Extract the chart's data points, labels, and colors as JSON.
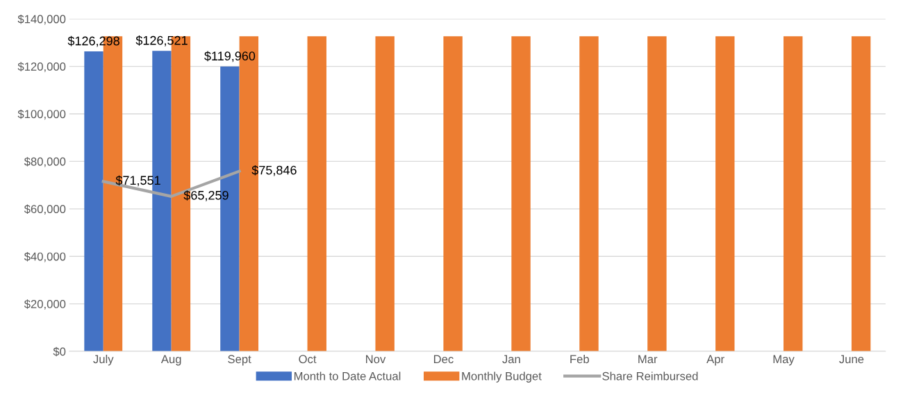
{
  "chart_data": {
    "type": "bar",
    "categories": [
      "July",
      "Aug",
      "Sept",
      "Oct",
      "Nov",
      "Dec",
      "Jan",
      "Feb",
      "Mar",
      "Apr",
      "May",
      "June"
    ],
    "series": [
      {
        "name": "Month to Date Actual",
        "color": "#4472c4",
        "values": [
          126298,
          126521,
          119960,
          null,
          null,
          null,
          null,
          null,
          null,
          null,
          null,
          null
        ],
        "value_labels": [
          "$126,298",
          "$126,521",
          "$119,960",
          null,
          null,
          null,
          null,
          null,
          null,
          null,
          null,
          null
        ]
      },
      {
        "name": "Monthly Budget",
        "color": "#ed7d31",
        "values": [
          132700,
          132700,
          132700,
          132700,
          132700,
          132700,
          132700,
          132700,
          132700,
          132700,
          132700,
          132700
        ]
      },
      {
        "name": "Share Reimbursed",
        "type": "line",
        "color": "#a5a5a5",
        "values": [
          71551,
          65259,
          75846,
          null,
          null,
          null,
          null,
          null,
          null,
          null,
          null,
          null
        ],
        "value_labels": [
          "$71,551",
          "$65,259",
          "$75,846",
          null,
          null,
          null,
          null,
          null,
          null,
          null,
          null,
          null
        ]
      }
    ],
    "ylim": [
      0,
      140000
    ],
    "yticks": [
      {
        "value": 0,
        "label": "$0"
      },
      {
        "value": 20000,
        "label": "$20,000"
      },
      {
        "value": 40000,
        "label": "$40,000"
      },
      {
        "value": 60000,
        "label": "$60,000"
      },
      {
        "value": 80000,
        "label": "$80,000"
      },
      {
        "value": 100000,
        "label": "$100,000"
      },
      {
        "value": 120000,
        "label": "$120,000"
      },
      {
        "value": 140000,
        "label": "$140,000"
      }
    ],
    "grid": "y",
    "legend": "bottom",
    "marker": "none",
    "line_style": "solid"
  }
}
